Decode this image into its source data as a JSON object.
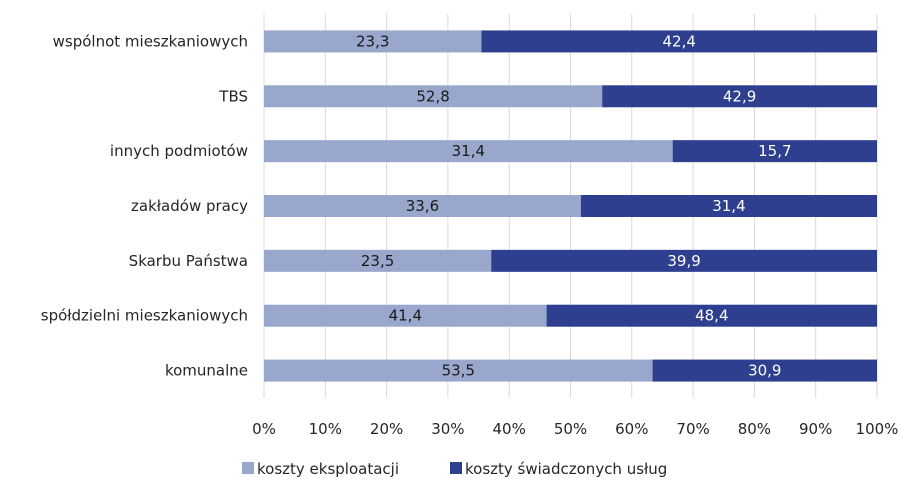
{
  "chart_data": {
    "type": "bar",
    "orientation": "horizontal",
    "stacking": "percent",
    "categories": [
      "wspólnot mieszkaniowych",
      "TBS",
      "innych podmiotów",
      "zakładów pracy",
      "Skarbu Państwa",
      "spółdzielni mieszkaniowych",
      "komunalne"
    ],
    "series": [
      {
        "name": "koszty eksploatacji",
        "color": "#9aa7cc",
        "label_color": "#1a1a1a",
        "values": [
          23.3,
          52.8,
          31.4,
          33.6,
          23.5,
          41.4,
          53.5
        ],
        "labels": [
          "23,3",
          "52,8",
          "31,4",
          "33,6",
          "23,5",
          "41,4",
          "53,5"
        ]
      },
      {
        "name": "koszty świadczonych usług",
        "color": "#2e3f8f",
        "label_color": "#ffffff",
        "values": [
          42.4,
          42.9,
          15.7,
          31.4,
          39.9,
          48.4,
          30.9
        ],
        "labels": [
          "42,4",
          "42,9",
          "15,7",
          "31,4",
          "39,9",
          "48,4",
          "30,9"
        ]
      }
    ],
    "xlim": [
      0,
      100
    ],
    "xticks": [
      "0%",
      "10%",
      "20%",
      "30%",
      "40%",
      "50%",
      "60%",
      "70%",
      "80%",
      "90%",
      "100%"
    ],
    "gridlines": true,
    "legend_position": "bottom",
    "title": "",
    "xlabel": "",
    "ylabel": ""
  }
}
